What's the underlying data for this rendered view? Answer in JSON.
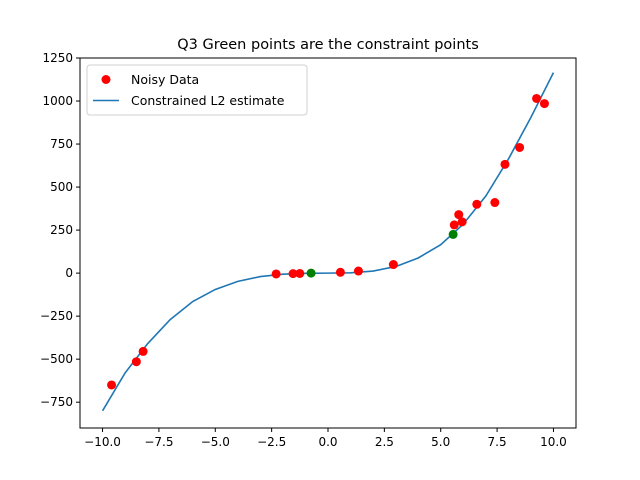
{
  "chart_data": {
    "type": "scatter",
    "title": "Q3 Green points are the constraint points",
    "xlabel": "",
    "ylabel": "",
    "xlim": [
      -11.0,
      11.0
    ],
    "ylim": [
      -900,
      1250
    ],
    "xticks": [
      -10.0,
      -7.5,
      -5.0,
      -2.5,
      0.0,
      2.5,
      5.0,
      7.5,
      10.0
    ],
    "xtick_labels": [
      "−10.0",
      "−7.5",
      "−5.0",
      "−2.5",
      "0.0",
      "2.5",
      "5.0",
      "7.5",
      "10.0"
    ],
    "yticks": [
      -750,
      -500,
      -250,
      0,
      250,
      500,
      750,
      1000,
      1250
    ],
    "ytick_labels": [
      "−750",
      "−500",
      "−250",
      "0",
      "250",
      "500",
      "750",
      "1000",
      "1250"
    ],
    "grid": false,
    "legend_position": "top-left",
    "series": [
      {
        "name": "Noisy Data",
        "kind": "scatter",
        "color": "#ff0000",
        "points": [
          [
            -9.6,
            -650
          ],
          [
            -8.5,
            -515
          ],
          [
            -8.2,
            -455
          ],
          [
            -2.3,
            -5
          ],
          [
            -1.55,
            -3
          ],
          [
            -1.25,
            -2
          ],
          [
            0.55,
            5
          ],
          [
            1.35,
            12
          ],
          [
            2.9,
            50
          ],
          [
            5.6,
            280
          ],
          [
            5.8,
            340
          ],
          [
            5.95,
            298
          ],
          [
            6.6,
            400
          ],
          [
            7.4,
            410
          ],
          [
            7.85,
            632
          ],
          [
            8.5,
            730
          ],
          [
            9.25,
            1015
          ],
          [
            9.6,
            985
          ]
        ]
      },
      {
        "name": "Constrained L2 estimate",
        "kind": "line",
        "color": "#1f77b4",
        "x_range": [
          -10.0,
          10.0
        ],
        "points": [
          [
            -10.0,
            -800
          ],
          [
            -9.0,
            -580
          ],
          [
            -8.0,
            -410
          ],
          [
            -7.0,
            -270
          ],
          [
            -6.0,
            -165
          ],
          [
            -5.0,
            -95
          ],
          [
            -4.0,
            -48
          ],
          [
            -3.0,
            -20
          ],
          [
            -2.0,
            -6
          ],
          [
            -1.0,
            -1
          ],
          [
            0.0,
            0
          ],
          [
            1.0,
            2
          ],
          [
            2.0,
            12
          ],
          [
            3.0,
            38
          ],
          [
            4.0,
            88
          ],
          [
            5.0,
            165
          ],
          [
            6.0,
            285
          ],
          [
            7.0,
            448
          ],
          [
            8.0,
            662
          ],
          [
            9.0,
            905
          ],
          [
            10.0,
            1165
          ]
        ]
      },
      {
        "name": "",
        "kind": "scatter",
        "color": "#008000",
        "points": [
          [
            -0.75,
            0
          ],
          [
            5.55,
            225
          ]
        ]
      }
    ]
  }
}
